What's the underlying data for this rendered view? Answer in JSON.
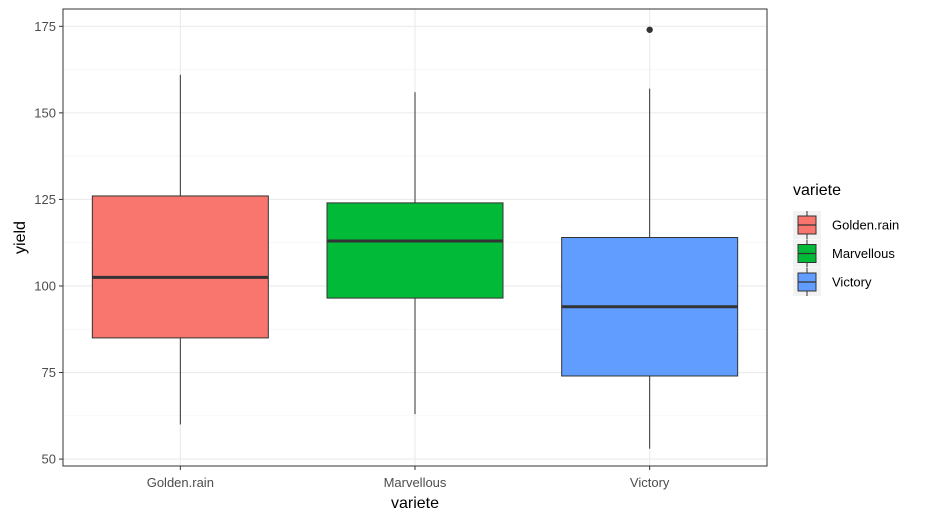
{
  "chart_data": {
    "type": "boxplot",
    "xlabel": "variete",
    "ylabel": "yield",
    "ylim": [
      48,
      180
    ],
    "y_ticks": [
      50,
      75,
      100,
      125,
      150,
      175
    ],
    "grid": true,
    "legend": {
      "title": "variete",
      "placement": "right",
      "entries": [
        "Golden.rain",
        "Marvellous",
        "Victory"
      ]
    },
    "categories": [
      "Golden.rain",
      "Marvellous",
      "Victory"
    ],
    "series": [
      {
        "name": "Golden.rain",
        "color": "#F8766D",
        "whisker_low": 60,
        "q1": 85,
        "median": 102.5,
        "q3": 126,
        "whisker_high": 161,
        "outliers": []
      },
      {
        "name": "Marvellous",
        "color": "#00BA38",
        "whisker_low": 63,
        "q1": 96.5,
        "median": 113,
        "q3": 124,
        "whisker_high": 156,
        "outliers": []
      },
      {
        "name": "Victory",
        "color": "#619CFF",
        "whisker_low": 53,
        "q1": 74,
        "median": 94,
        "q3": 114,
        "whisker_high": 157,
        "outliers": [
          174
        ]
      }
    ]
  }
}
